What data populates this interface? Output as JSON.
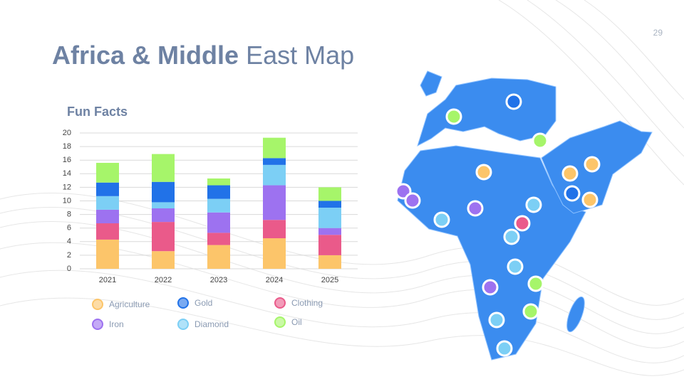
{
  "page_number": "29",
  "title_bold": "Africa & Middle",
  "title_rest": "East Map",
  "chart_data": {
    "type": "stacked-bar",
    "title": "Fun Facts",
    "categories": [
      "2021",
      "2022",
      "2023",
      "2024",
      "2025"
    ],
    "series": [
      {
        "name": "Agriculture",
        "color": "#fcc56a",
        "values": [
          4.3,
          2.6,
          3.5,
          4.5,
          2.0
        ]
      },
      {
        "name": "Clothing",
        "color": "#ea5a8a",
        "values": [
          2.4,
          4.3,
          1.8,
          2.7,
          3.0
        ]
      },
      {
        "name": "Iron",
        "color": "#9d72f0",
        "values": [
          2.0,
          2.0,
          3.0,
          5.1,
          1.0
        ]
      },
      {
        "name": "Diamond",
        "color": "#7ccff5",
        "values": [
          2.0,
          0.9,
          2.0,
          3.0,
          3.0
        ]
      },
      {
        "name": "Gold",
        "color": "#2172e8",
        "values": [
          2.0,
          3.0,
          2.0,
          1.0,
          1.0
        ]
      },
      {
        "name": "Oil",
        "color": "#a6f56a",
        "values": [
          2.9,
          4.1,
          1.0,
          3.0,
          2.0
        ]
      }
    ],
    "ylim": [
      0,
      20
    ],
    "yticks": [
      0,
      2,
      4,
      6,
      8,
      10,
      12,
      14,
      16,
      18,
      20
    ],
    "grid": true
  }
}
